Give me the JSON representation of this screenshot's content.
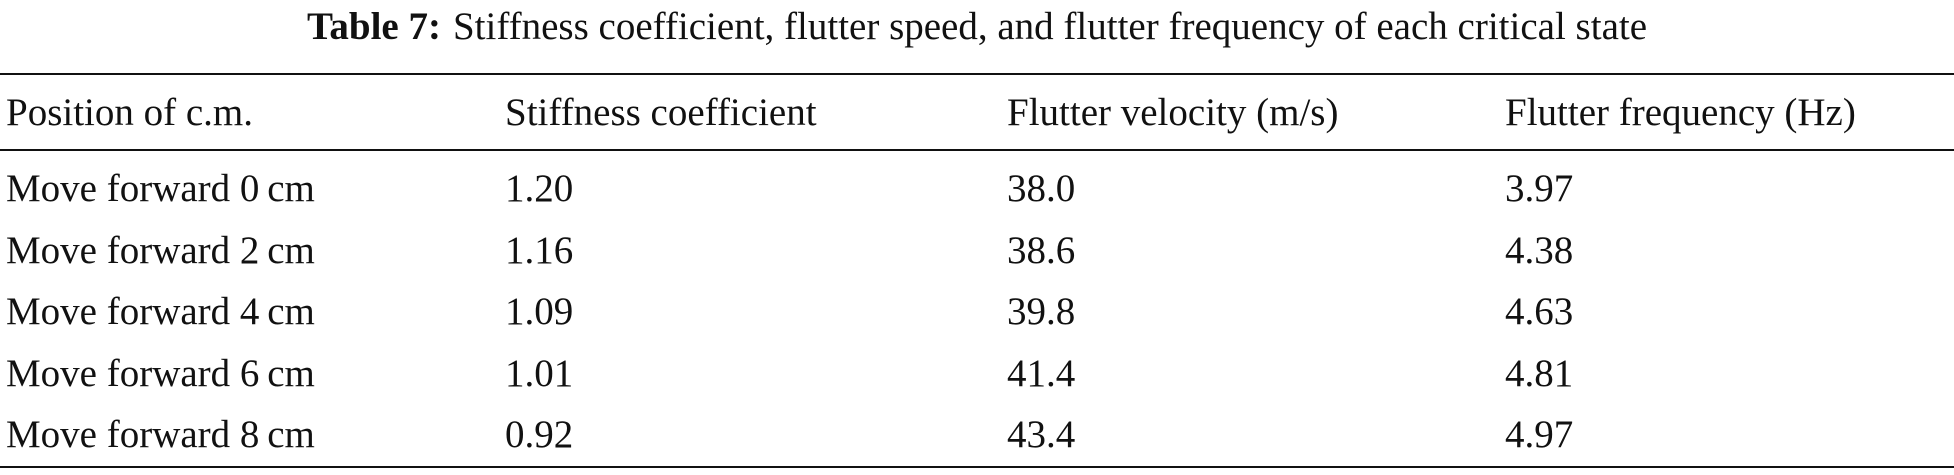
{
  "caption": {
    "label": "Table 7:",
    "text": "Stiffness coefficient, flutter speed, and flutter frequency of each critical state"
  },
  "table": {
    "header": [
      "Position of c.m.",
      "Stiffness coefficient",
      "Flutter velocity (m/s)",
      "Flutter frequency (Hz)"
    ],
    "rows": [
      [
        "Move forward 0 cm",
        "1.20",
        "38.0",
        "3.97"
      ],
      [
        "Move forward 2 cm",
        "1.16",
        "38.6",
        "4.38"
      ],
      [
        "Move forward 4 cm",
        "1.09",
        "39.8",
        "4.63"
      ],
      [
        "Move forward 6 cm",
        "1.01",
        "41.4",
        "4.81"
      ],
      [
        "Move forward 8 cm",
        "0.92",
        "43.4",
        "4.97"
      ]
    ]
  }
}
